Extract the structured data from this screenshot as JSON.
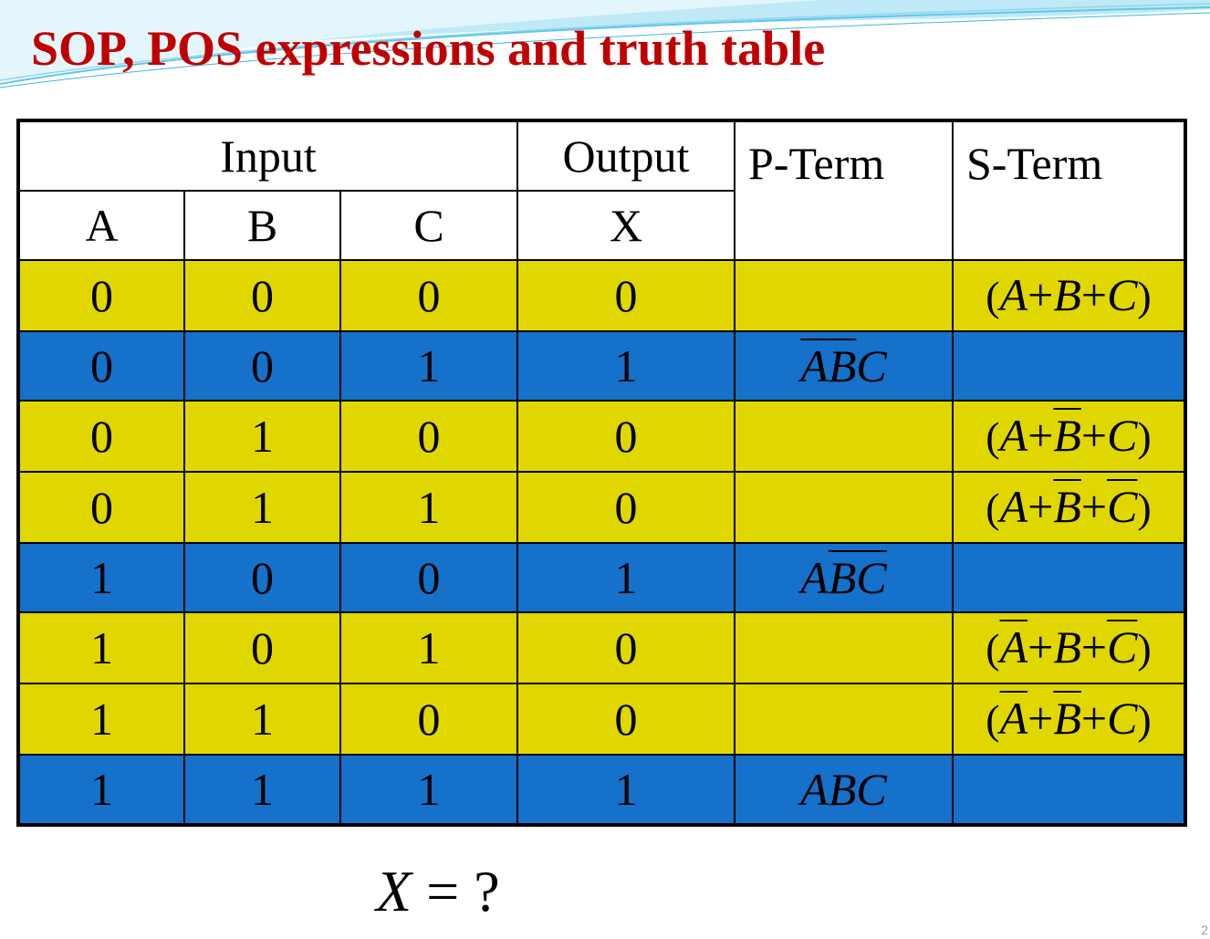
{
  "slide": {
    "title": "SOP, POS expressions and truth table",
    "page_number": "2"
  },
  "table": {
    "group_headers": {
      "input": "Input",
      "output": "Output",
      "p_term": "P-Term",
      "s_term": "S-Term"
    },
    "column_headers": [
      "A",
      "B",
      "C",
      "X"
    ],
    "rows": [
      {
        "a": "0",
        "b": "0",
        "c": "0",
        "x": "0",
        "highlight": "yellow",
        "p_term": "",
        "s_term": [
          {
            "t": "A",
            "bar": false
          },
          {
            "t": "B",
            "bar": false
          },
          {
            "t": "C",
            "bar": false
          }
        ]
      },
      {
        "a": "0",
        "b": "0",
        "c": "1",
        "x": "1",
        "highlight": "blue",
        "p_term": [
          {
            "t": "A",
            "bar": true
          },
          {
            "t": "B",
            "bar": true
          },
          {
            "t": "C",
            "bar": false
          }
        ],
        "s_term": ""
      },
      {
        "a": "0",
        "b": "1",
        "c": "0",
        "x": "0",
        "highlight": "yellow",
        "p_term": "",
        "s_term": [
          {
            "t": "A",
            "bar": false
          },
          {
            "t": "B",
            "bar": true
          },
          {
            "t": "C",
            "bar": false
          }
        ]
      },
      {
        "a": "0",
        "b": "1",
        "c": "1",
        "x": "0",
        "highlight": "yellow",
        "p_term": "",
        "s_term": [
          {
            "t": "A",
            "bar": false
          },
          {
            "t": "B",
            "bar": true
          },
          {
            "t": "C",
            "bar": true
          }
        ]
      },
      {
        "a": "1",
        "b": "0",
        "c": "0",
        "x": "1",
        "highlight": "blue",
        "p_term": [
          {
            "t": "A",
            "bar": false
          },
          {
            "t": "B",
            "bar": true
          },
          {
            "t": "C",
            "bar": true
          }
        ],
        "s_term": ""
      },
      {
        "a": "1",
        "b": "0",
        "c": "1",
        "x": "0",
        "highlight": "yellow",
        "p_term": "",
        "s_term": [
          {
            "t": "A",
            "bar": true
          },
          {
            "t": "B",
            "bar": false
          },
          {
            "t": "C",
            "bar": true
          }
        ]
      },
      {
        "a": "1",
        "b": "1",
        "c": "0",
        "x": "0",
        "highlight": "yellow",
        "p_term": "",
        "s_term": [
          {
            "t": "A",
            "bar": true
          },
          {
            "t": "B",
            "bar": true
          },
          {
            "t": "C",
            "bar": false
          }
        ]
      },
      {
        "a": "1",
        "b": "1",
        "c": "1",
        "x": "1",
        "highlight": "blue",
        "p_term": [
          {
            "t": "A",
            "bar": false
          },
          {
            "t": "B",
            "bar": false
          },
          {
            "t": "C",
            "bar": false
          }
        ],
        "s_term": ""
      }
    ]
  },
  "formula": {
    "variable": "X",
    "equals": "=",
    "rhs": "?"
  },
  "colors": {
    "title": "#c00000",
    "row_yellow": "#e1d700",
    "row_blue": "#1571c9",
    "p_term_text": "#ffff33",
    "deco_wave": "#5fc6e8"
  }
}
